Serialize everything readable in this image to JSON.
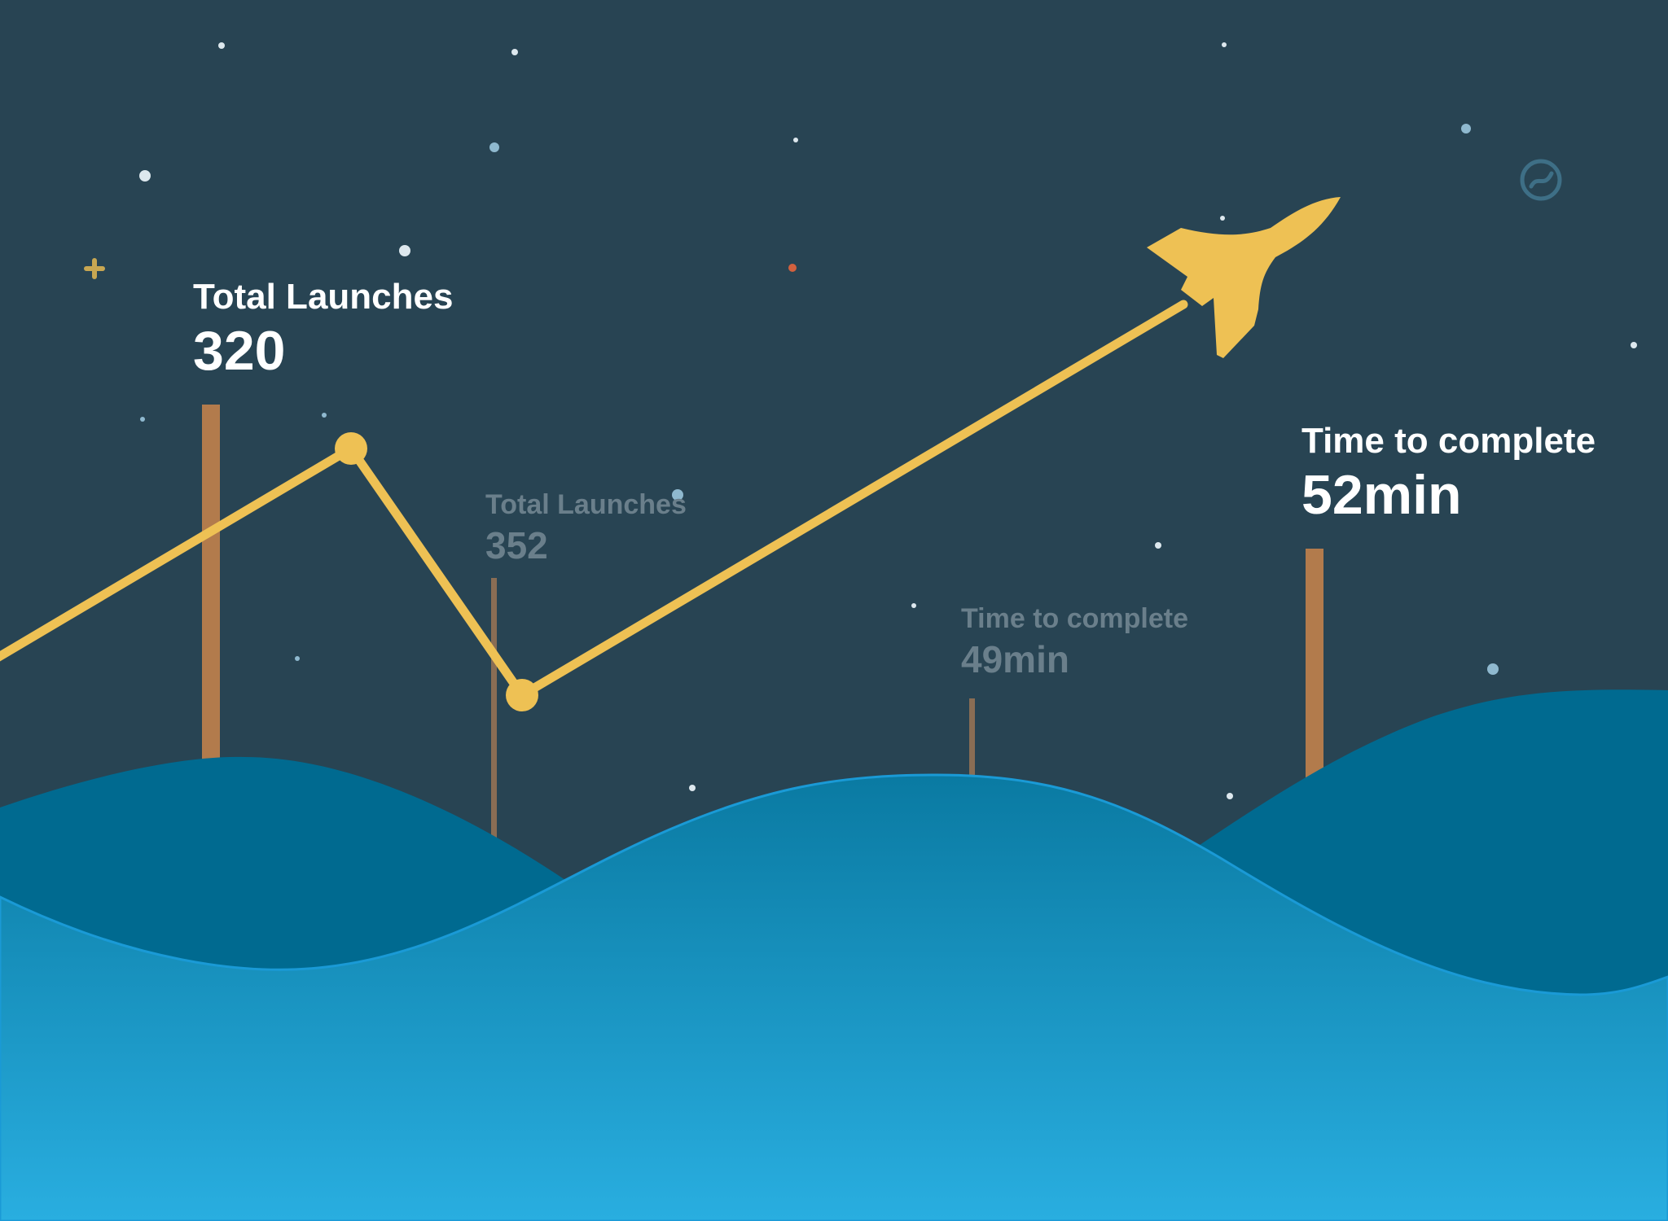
{
  "colors": {
    "sky": "#284453",
    "trajectory": "#EEC154",
    "pole_primary": "#B27B4C",
    "pole_secondary": "#8A6D54",
    "back_hills": "#006A90",
    "front_hills_top": "#0A7AA2",
    "front_hills_bottom": "#29AEE0",
    "star": "#DDE8EE",
    "star_blue": "#8FB9CF",
    "star_red": "#D2613E"
  },
  "icons": {
    "rocket": "rocket-icon",
    "sparkle": "plus-sparkle-icon",
    "planet": "planet-icon"
  },
  "stats": [
    {
      "caption": "Total Launches",
      "value": "320",
      "emphasis": "primary"
    },
    {
      "caption": "Total Launches",
      "value": "352",
      "emphasis": "secondary"
    },
    {
      "caption": "Time to complete",
      "value": "49min",
      "emphasis": "secondary"
    },
    {
      "caption": "Time to complete",
      "value": "52min",
      "emphasis": "primary"
    }
  ]
}
